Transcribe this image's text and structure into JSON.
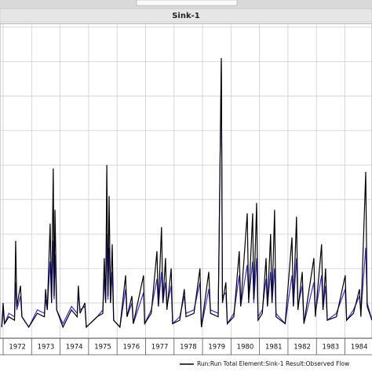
{
  "chart_data": {
    "type": "line",
    "title": "Sink-1",
    "x": [
      1971.95,
      1972.0,
      1972.05,
      1972.2,
      1972.4,
      1972.44,
      1972.48,
      1972.61,
      1972.66,
      1972.9,
      1973.2,
      1973.45,
      1973.49,
      1973.55,
      1973.65,
      1973.7,
      1973.76,
      1973.79,
      1973.82,
      1973.88,
      1974.1,
      1974.4,
      1974.6,
      1974.64,
      1974.7,
      1974.87,
      1974.92,
      1975.3,
      1975.5,
      1975.55,
      1975.6,
      1975.64,
      1975.68,
      1975.72,
      1975.77,
      1975.83,
      1975.88,
      1976.1,
      1976.3,
      1976.35,
      1976.52,
      1976.57,
      1976.93,
      1976.97,
      1977.2,
      1977.4,
      1977.45,
      1977.56,
      1977.61,
      1977.7,
      1977.75,
      1977.9,
      1977.95,
      1978.2,
      1978.36,
      1978.42,
      1978.7,
      1978.91,
      1978.96,
      1979.22,
      1979.28,
      1979.55,
      1979.66,
      1979.7,
      1979.82,
      1979.87,
      1980.1,
      1980.29,
      1980.34,
      1980.57,
      1980.62,
      1980.76,
      1980.8,
      1980.9,
      1980.95,
      1981.1,
      1981.23,
      1981.28,
      1981.39,
      1981.44,
      1981.53,
      1981.58,
      1981.9,
      1982.14,
      1982.19,
      1982.3,
      1982.35,
      1982.5,
      1982.56,
      1982.91,
      1982.96,
      1983.18,
      1983.23,
      1983.32,
      1983.38,
      1983.7,
      1984.01,
      1984.06,
      1984.3,
      1984.51,
      1984.56,
      1984.73,
      1984.78,
      1984.95
    ],
    "series": [
      {
        "color": "#3a2fd0",
        "values": [
          0.3,
          0.8,
          0.4,
          0.7,
          0.6,
          1.6,
          0.8,
          1.2,
          0.6,
          0.3,
          0.8,
          0.7,
          1.1,
          0.8,
          2.2,
          1.0,
          2.8,
          1.1,
          2.4,
          0.8,
          0.4,
          0.9,
          0.7,
          1.3,
          0.8,
          0.9,
          0.3,
          0.6,
          0.8,
          1.7,
          1.0,
          3.0,
          1.1,
          2.6,
          1.0,
          1.9,
          0.5,
          0.3,
          1.4,
          0.6,
          1.0,
          0.4,
          1.3,
          0.4,
          0.8,
          1.7,
          0.9,
          1.9,
          1.0,
          1.6,
          0.9,
          1.5,
          0.4,
          0.6,
          1.2,
          0.7,
          0.8,
          1.6,
          0.3,
          1.4,
          0.8,
          0.7,
          8.0,
          1.2,
          1.3,
          0.4,
          0.7,
          1.8,
          0.9,
          2.1,
          1.1,
          2.2,
          1.0,
          2.3,
          0.6,
          0.8,
          1.7,
          0.9,
          1.9,
          1.0,
          2.0,
          0.7,
          0.4,
          1.8,
          0.9,
          2.3,
          0.9,
          1.5,
          0.4,
          1.6,
          0.7,
          1.8,
          0.8,
          1.5,
          0.5,
          0.7,
          1.4,
          0.5,
          0.8,
          1.2,
          0.7,
          2.6,
          1.0,
          0.5
        ]
      },
      {
        "name": "Run:Run Total Element:Sink-1 Result:Observed Flow",
        "color": "#000000",
        "values": [
          0.3,
          1.0,
          0.4,
          0.6,
          0.5,
          2.8,
          0.9,
          1.5,
          0.6,
          0.3,
          0.7,
          0.6,
          1.4,
          0.8,
          3.3,
          1.0,
          4.9,
          1.2,
          3.7,
          0.8,
          0.3,
          0.8,
          0.6,
          1.5,
          0.7,
          1.0,
          0.3,
          0.6,
          0.7,
          2.3,
          1.0,
          5.0,
          1.2,
          4.1,
          1.0,
          2.7,
          0.5,
          0.3,
          1.8,
          0.6,
          1.2,
          0.4,
          1.8,
          0.4,
          0.7,
          2.5,
          0.9,
          3.2,
          1.0,
          2.3,
          0.8,
          2.0,
          0.4,
          0.5,
          1.4,
          0.6,
          0.7,
          2.0,
          0.3,
          1.9,
          0.7,
          0.6,
          8.1,
          1.0,
          1.6,
          0.4,
          0.6,
          2.5,
          0.9,
          3.6,
          1.0,
          3.6,
          1.1,
          3.9,
          0.5,
          0.7,
          2.3,
          0.9,
          3.0,
          1.0,
          3.7,
          0.6,
          0.4,
          2.9,
          0.9,
          3.5,
          0.8,
          1.9,
          0.4,
          2.3,
          0.6,
          2.7,
          0.8,
          2.0,
          0.5,
          0.6,
          1.8,
          0.5,
          0.7,
          1.4,
          0.6,
          4.8,
          0.9,
          0.5
        ]
      }
    ],
    "xlim": [
      1971.89,
      1984.95
    ],
    "ylim": [
      0,
      9.1
    ],
    "xticks": [
      1972,
      1973,
      1974,
      1975,
      1976,
      1977,
      1978,
      1979,
      1980,
      1981,
      1982,
      1983,
      1984
    ],
    "ygrid": [
      1,
      2,
      3,
      4,
      5,
      6,
      7,
      8,
      9
    ]
  }
}
